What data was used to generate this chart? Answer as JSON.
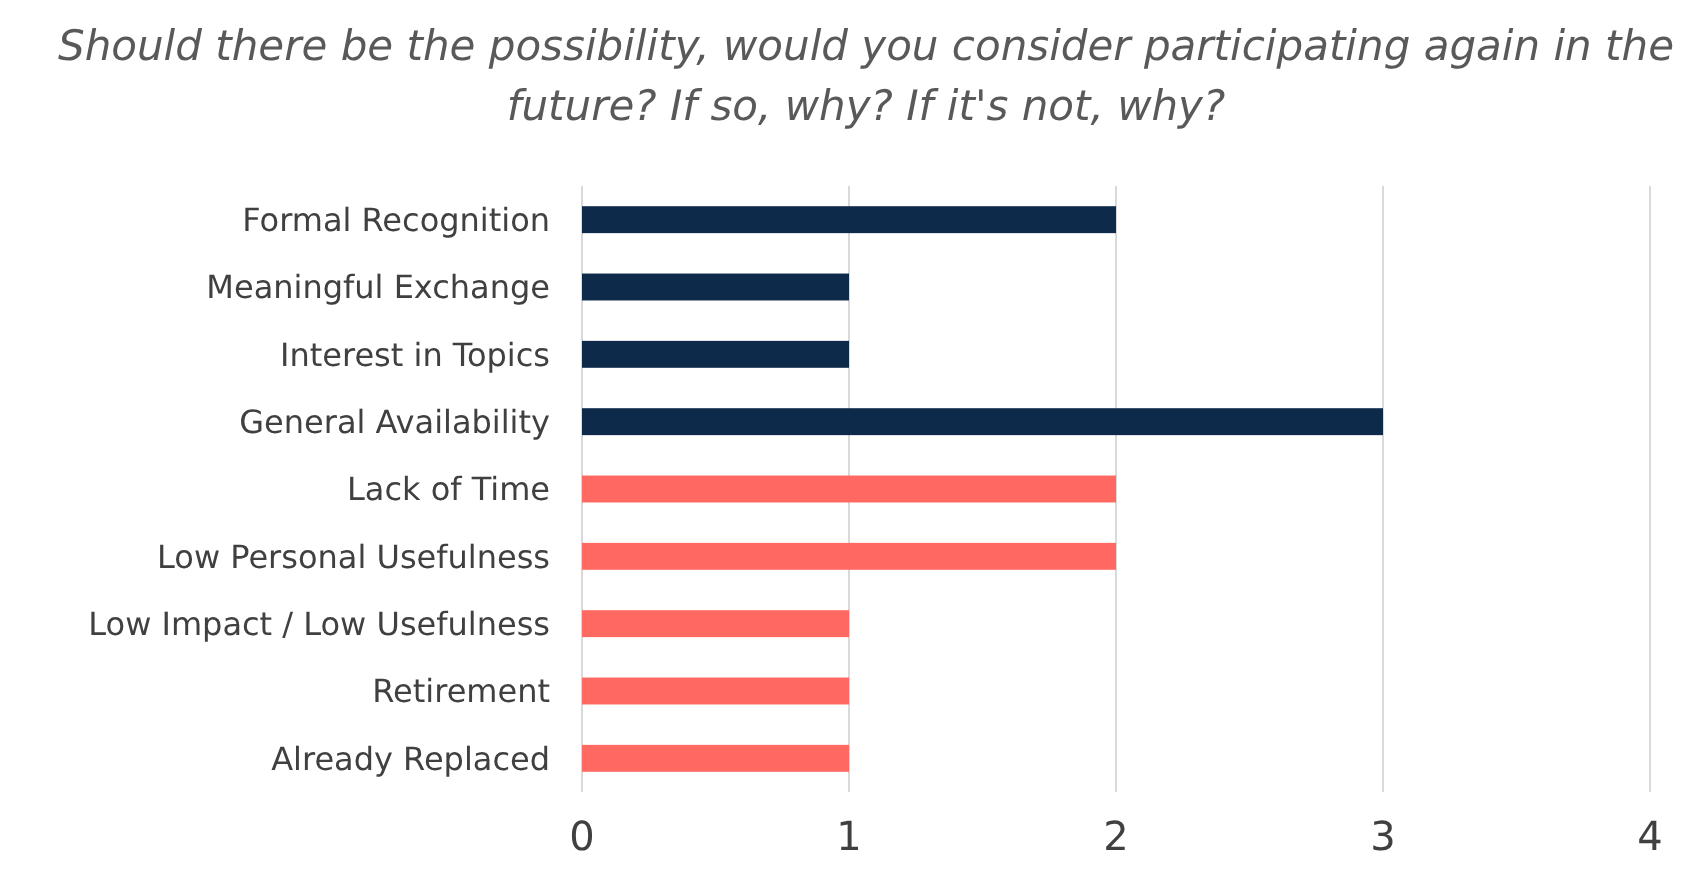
{
  "chart_data": {
    "type": "bar",
    "orientation": "horizontal",
    "title": "Should there be the possibility, would you consider participating again in the future? If so, why? If it's not, why?",
    "categories": [
      "Formal Recognition",
      "Meaningful Exchange",
      "Interest in Topics",
      "General Availability",
      "Lack of Time",
      "Low Personal Usefulness",
      "Low Impact / Low Usefulness",
      "Retirement",
      "Already Replaced"
    ],
    "values": [
      2,
      1,
      1,
      3,
      2,
      2,
      1,
      1,
      1
    ],
    "colors": [
      "#0e2a4b",
      "#0e2a4b",
      "#0e2a4b",
      "#0e2a4b",
      "#ff6961",
      "#ff6961",
      "#ff6961",
      "#ff6961",
      "#ff6961"
    ],
    "xlim": [
      0,
      4
    ],
    "xticks": [
      0,
      1,
      2,
      3,
      4
    ],
    "grid": "x"
  }
}
